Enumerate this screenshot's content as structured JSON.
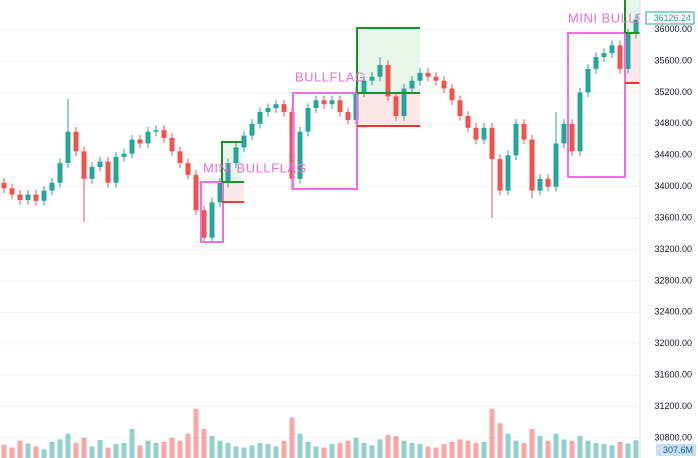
{
  "chart_data": {
    "type": "candlestick",
    "annotations": [
      "MINI BULLFLAG",
      "BULLFLAG",
      "MINI BULLFLAG"
    ],
    "series": [
      {
        "up_color": "#26a69a",
        "down_color": "#ef5350",
        "open": [
          34050,
          33980,
          33900,
          33830,
          33900,
          33820,
          33950,
          34050,
          34300,
          34700,
          34450,
          34100,
          34250,
          34320,
          34050,
          34380,
          34420,
          34600,
          34550,
          34700,
          34720,
          34620,
          34450,
          34300,
          34150,
          33700,
          33350,
          33800,
          34050,
          34300,
          34500,
          34650,
          34800,
          34950,
          35000,
          35050,
          34950,
          34100,
          34700,
          35000,
          35100,
          35050,
          35100,
          34950,
          34850,
          35200,
          35350,
          35400,
          35550,
          35150,
          34900,
          35250,
          35350,
          35450,
          35400,
          35350,
          35250,
          35100,
          34900,
          34750,
          34600,
          34750,
          34350,
          33950,
          34400,
          34800,
          34600,
          33950,
          34100,
          34000,
          34550,
          34800,
          34450,
          35200,
          35500,
          35650,
          35700,
          35800,
          35500,
          35950
        ],
        "high": [
          34110,
          34040,
          33960,
          33960,
          33960,
          34010,
          34110,
          34360,
          35120,
          34760,
          34510,
          34310,
          34380,
          34380,
          34440,
          34480,
          34660,
          34660,
          34760,
          34780,
          34780,
          34680,
          34510,
          34360,
          34210,
          33760,
          33860,
          34110,
          34360,
          34560,
          34710,
          34860,
          35010,
          35060,
          35110,
          35110,
          35010,
          34760,
          35060,
          35160,
          35160,
          35160,
          35160,
          35010,
          35260,
          35410,
          35460,
          35650,
          35610,
          35210,
          35310,
          35410,
          35510,
          35510,
          35460,
          35410,
          35310,
          35160,
          34960,
          34810,
          34810,
          34810,
          34410,
          34460,
          34860,
          34860,
          34660,
          34160,
          34160,
          34950,
          34860,
          34860,
          35260,
          35560,
          35710,
          35760,
          35860,
          35860,
          36010,
          36200
        ],
        "low": [
          33920,
          33840,
          33770,
          33770,
          33760,
          33760,
          33890,
          33990,
          34240,
          34390,
          33550,
          34040,
          34190,
          33990,
          33990,
          34320,
          34360,
          34490,
          34490,
          34640,
          34560,
          34390,
          34240,
          34090,
          33640,
          33290,
          33290,
          33740,
          33990,
          34240,
          34440,
          34590,
          34740,
          34890,
          34940,
          34890,
          33950,
          34040,
          34640,
          34940,
          34990,
          34990,
          34890,
          34790,
          34790,
          35140,
          35290,
          35340,
          35090,
          34840,
          34840,
          35190,
          35290,
          35340,
          35290,
          35190,
          35040,
          34840,
          34690,
          34540,
          34540,
          33600,
          33890,
          33890,
          34340,
          34540,
          33850,
          33890,
          33940,
          33940,
          34490,
          34390,
          34390,
          35140,
          35440,
          35590,
          35640,
          35440,
          35440,
          35890
        ],
        "close": [
          33980,
          33900,
          33830,
          33900,
          33820,
          33950,
          34050,
          34300,
          34700,
          34450,
          34100,
          34250,
          34320,
          34050,
          34380,
          34420,
          34600,
          34550,
          34700,
          34720,
          34620,
          34450,
          34300,
          34150,
          33700,
          33350,
          33800,
          34050,
          34300,
          34500,
          34650,
          34800,
          34950,
          35000,
          35050,
          34950,
          34100,
          34700,
          35000,
          35100,
          35050,
          35100,
          34950,
          34850,
          35200,
          35350,
          35400,
          35550,
          35150,
          34900,
          35250,
          35350,
          35450,
          35400,
          35350,
          35250,
          35100,
          34900,
          34750,
          34600,
          34750,
          34350,
          33950,
          34400,
          34800,
          34600,
          33950,
          34100,
          34000,
          34550,
          34800,
          34450,
          35200,
          35500,
          35650,
          35700,
          35800,
          35500,
          35950,
          36126.24
        ]
      }
    ],
    "volume": {
      "values": [
        230,
        180,
        300,
        250,
        200,
        150,
        280,
        320,
        420,
        260,
        350,
        200,
        310,
        180,
        240,
        260,
        500,
        220,
        300,
        260,
        280,
        350,
        300,
        420,
        850,
        500,
        380,
        300,
        260,
        200,
        180,
        220,
        260,
        240,
        200,
        300,
        700,
        420,
        280,
        200,
        180,
        240,
        260,
        300,
        350,
        260,
        220,
        320,
        400,
        380,
        300,
        260,
        240,
        200,
        180,
        240,
        280,
        320,
        300,
        260,
        280,
        850,
        600,
        420,
        300,
        260,
        500,
        380,
        300,
        420,
        320,
        300,
        380,
        300,
        260,
        240,
        220,
        280,
        250,
        307.6
      ],
      "ylim": [
        0,
        1000
      ],
      "last_value_label": "307.6M"
    },
    "ylim": [
      30545,
      36377
    ],
    "yticks": [
      {
        "value": 36000,
        "label": "36000.00"
      },
      {
        "value": 35600,
        "label": "35600.00"
      },
      {
        "value": 35200,
        "label": "35200.00"
      },
      {
        "value": 34800,
        "label": "34800.00"
      },
      {
        "value": 34400,
        "label": "34400.00"
      },
      {
        "value": 34000,
        "label": "34000.00"
      },
      {
        "value": 33600,
        "label": "33600.00"
      },
      {
        "value": 33200,
        "label": "33200.00"
      },
      {
        "value": 32800,
        "label": "32800.00"
      },
      {
        "value": 32400,
        "label": "32400.00"
      },
      {
        "value": 32000,
        "label": "32000.00"
      },
      {
        "value": 31600,
        "label": "31600.00"
      },
      {
        "value": 31200,
        "label": "31200.00"
      },
      {
        "value": 30800,
        "label": "30800.00"
      }
    ],
    "grid": true
  }
}
